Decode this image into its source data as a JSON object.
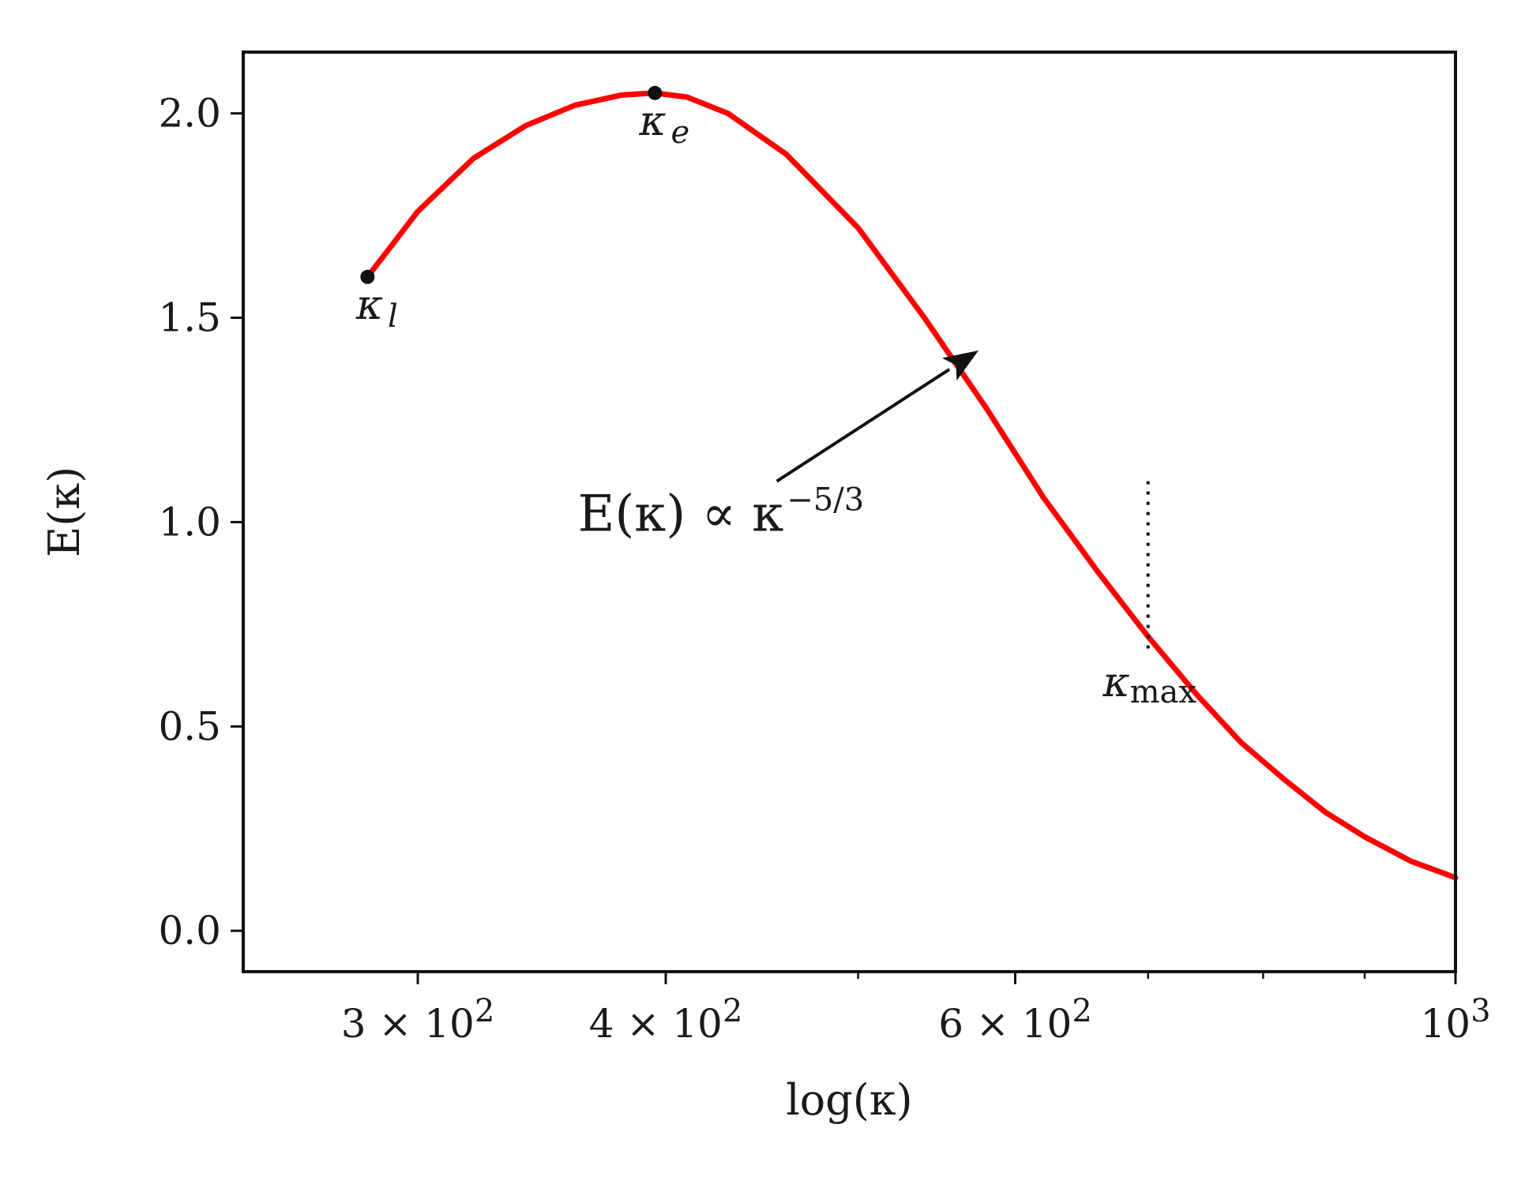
{
  "chart_data": {
    "type": "line",
    "xscale": "log",
    "xlim": [
      245,
      1000
    ],
    "ylim": [
      -0.1,
      2.15
    ],
    "xlabel": "log(κ)",
    "ylabel": "E(κ)",
    "grid": false,
    "x_major_ticks": [
      {
        "value": 300,
        "label_base": "3 × 10",
        "label_exp": "2"
      },
      {
        "value": 400,
        "label_base": "4 × 10",
        "label_exp": "2"
      },
      {
        "value": 600,
        "label_base": "6 × 10",
        "label_exp": "2"
      },
      {
        "value": 1000,
        "label_base": "10",
        "label_exp": "3"
      }
    ],
    "x_minor_ticks": [
      500,
      700,
      800,
      900
    ],
    "y_ticks": [
      {
        "value": 0.0,
        "label": "0.0"
      },
      {
        "value": 0.5,
        "label": "0.5"
      },
      {
        "value": 1.0,
        "label": "1.0"
      },
      {
        "value": 1.5,
        "label": "1.5"
      },
      {
        "value": 2.0,
        "label": "2.0"
      }
    ],
    "series": [
      {
        "color": "#ff0000",
        "x": [
          283,
          300,
          320,
          340,
          360,
          380,
          395,
          410,
          430,
          460,
          500,
          540,
          580,
          620,
          660,
          700,
          740,
          780,
          820,
          860,
          900,
          950,
          1000
        ],
        "y": [
          1.6,
          1.76,
          1.89,
          1.97,
          2.02,
          2.045,
          2.05,
          2.04,
          2.0,
          1.9,
          1.72,
          1.5,
          1.28,
          1.06,
          0.88,
          0.72,
          0.58,
          0.46,
          0.37,
          0.29,
          0.23,
          0.17,
          0.13
        ]
      }
    ],
    "points": [
      {
        "name": "kl",
        "x": 283,
        "y": 1.6,
        "label_main": "κ",
        "label_sub": "l"
      },
      {
        "name": "ke",
        "x": 395,
        "y": 2.05,
        "label_main": "κ",
        "label_sub": "e"
      }
    ],
    "vline": {
      "x": 700,
      "y_from": 0.68,
      "y_to": 1.1,
      "style": "dotted",
      "label_main": "κ",
      "label_sub": "max"
    },
    "annotation": {
      "text_base": "E(κ) ∝ κ",
      "text_exp": "−5/3",
      "tail_x": 455,
      "tail_y": 1.1,
      "head_x": 575,
      "head_y": 1.42
    }
  }
}
